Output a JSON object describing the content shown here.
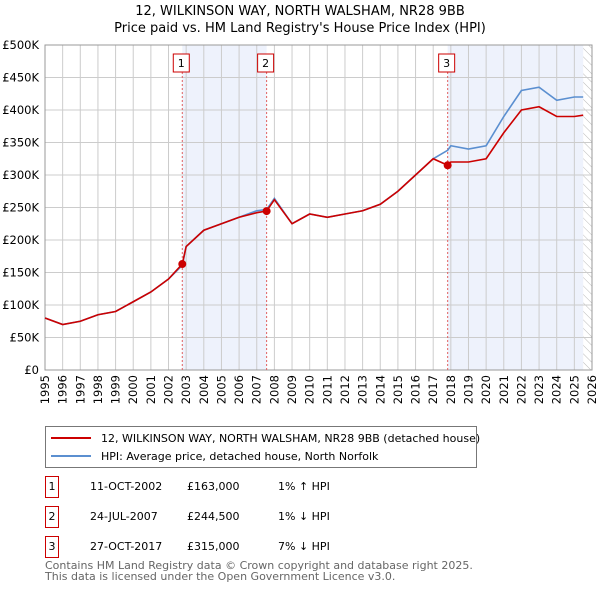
{
  "header": {
    "title": "12, WILKINSON WAY, NORTH WALSHAM, NR28 9BB",
    "subtitle": "Price paid vs. HM Land Registry's House Price Index (HPI)"
  },
  "chart_data": {
    "type": "line",
    "title": "12, WILKINSON WAY, NORTH WALSHAM, NR28 9BB",
    "xlim": [
      1995,
      2026
    ],
    "ylim": [
      0,
      500000
    ],
    "xticks": [
      "1995",
      "1996",
      "1997",
      "1998",
      "1999",
      "2000",
      "2001",
      "2002",
      "2003",
      "2004",
      "2005",
      "2006",
      "2007",
      "2008",
      "2009",
      "2010",
      "2011",
      "2012",
      "2013",
      "2014",
      "2015",
      "2016",
      "2017",
      "2018",
      "2019",
      "2020",
      "2021",
      "2022",
      "2023",
      "2024",
      "2025",
      "2026"
    ],
    "yticks": [
      {
        "v": 0,
        "l": "£0"
      },
      {
        "v": 50000,
        "l": "£50K"
      },
      {
        "v": 100000,
        "l": "£100K"
      },
      {
        "v": 150000,
        "l": "£150K"
      },
      {
        "v": 200000,
        "l": "£200K"
      },
      {
        "v": 250000,
        "l": "£250K"
      },
      {
        "v": 300000,
        "l": "£300K"
      },
      {
        "v": 350000,
        "l": "£350K"
      },
      {
        "v": 400000,
        "l": "£400K"
      },
      {
        "v": 450000,
        "l": "£450K"
      },
      {
        "v": 500000,
        "l": "£500K"
      }
    ],
    "grid": true,
    "series": [
      {
        "name": "12, WILKINSON WAY, NORTH WALSHAM, NR28 9BB (detached house)",
        "color": "#cc0000",
        "x": [
          1995,
          1996,
          1997,
          1998,
          1999,
          2000,
          2001,
          2002,
          2002.78,
          2003,
          2004,
          2005,
          2006,
          2007,
          2007.56,
          2008,
          2009,
          2010,
          2011,
          2012,
          2013,
          2014,
          2015,
          2016,
          2017,
          2017.82,
          2018,
          2019,
          2020,
          2021,
          2022,
          2023,
          2024,
          2025,
          2025.5
        ],
        "y": [
          80000,
          70000,
          75000,
          85000,
          90000,
          105000,
          120000,
          140000,
          163000,
          190000,
          215000,
          225000,
          235000,
          242000,
          244500,
          262000,
          225000,
          240000,
          235000,
          240000,
          245000,
          255000,
          275000,
          300000,
          325000,
          315000,
          320000,
          320000,
          325000,
          365000,
          400000,
          405000,
          390000,
          390000,
          392000
        ]
      },
      {
        "name": "HPI: Average price, detached house, North Norfolk",
        "color": "#5b8fd0",
        "x": [
          1995,
          1996,
          1997,
          1998,
          1999,
          2000,
          2001,
          2002,
          2002.78,
          2003,
          2004,
          2005,
          2006,
          2007,
          2007.56,
          2008,
          2009,
          2010,
          2011,
          2012,
          2013,
          2014,
          2015,
          2016,
          2017,
          2017.82,
          2018,
          2019,
          2020,
          2021,
          2022,
          2023,
          2024,
          2025,
          2025.5
        ],
        "y": [
          80000,
          70000,
          75000,
          85000,
          90000,
          105000,
          120000,
          140000,
          161000,
          190000,
          215000,
          225000,
          235000,
          245000,
          247000,
          264000,
          225000,
          240000,
          235000,
          240000,
          245000,
          255000,
          275000,
          300000,
          325000,
          338000,
          345000,
          340000,
          345000,
          390000,
          430000,
          435000,
          415000,
          420000,
          420000
        ]
      }
    ],
    "sales": [
      {
        "n": "1",
        "x": 2002.78,
        "y": 163000
      },
      {
        "n": "2",
        "x": 2007.56,
        "y": 244500
      },
      {
        "n": "3",
        "x": 2017.82,
        "y": 315000
      }
    ],
    "shaded": [
      [
        2002.78,
        2007.56
      ],
      [
        2017.82,
        2025.5
      ]
    ],
    "hatched_from": 2025.5
  },
  "legend": {
    "red": "12, WILKINSON WAY, NORTH WALSHAM, NR28 9BB (detached house)",
    "blue": "HPI: Average price, detached house, North Norfolk"
  },
  "table": [
    {
      "n": "1",
      "date": "11-OCT-2002",
      "price": "£163,000",
      "hpi": "1% ↑ HPI"
    },
    {
      "n": "2",
      "date": "24-JUL-2007",
      "price": "£244,500",
      "hpi": "1% ↓ HPI"
    },
    {
      "n": "3",
      "date": "27-OCT-2017",
      "price": "£315,000",
      "hpi": "7% ↓ HPI"
    }
  ],
  "footer": {
    "line1": "Contains HM Land Registry data © Crown copyright and database right 2025.",
    "line2": "This data is licensed under the Open Government Licence v3.0."
  }
}
